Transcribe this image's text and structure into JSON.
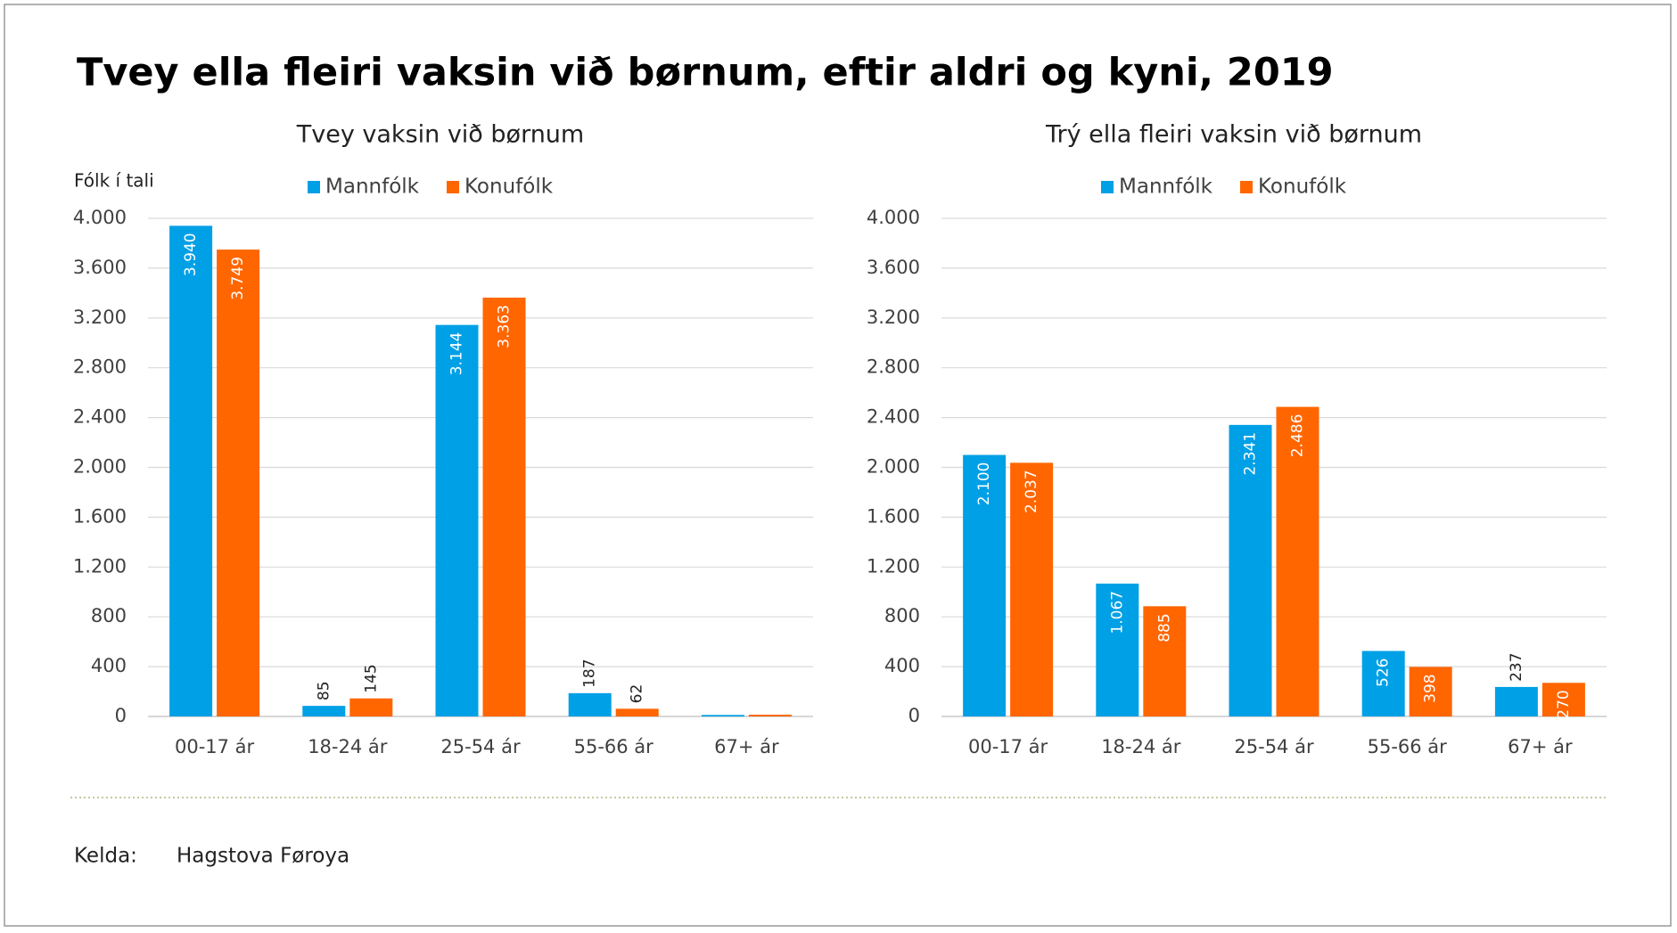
{
  "title": "Tvey ella fleiri vaksin við børnum, eftir aldri og kyni, 2019",
  "source": {
    "label": "Kelda:",
    "value": "Hagstova Føroya"
  },
  "chart_data": [
    {
      "type": "bar",
      "title": "Tvey vaksin við børnum",
      "ylabel": "Fólk í tali",
      "categories": [
        "00-17 ár",
        "18-24 ár",
        "25-54 ár",
        "55-66 ár",
        "67+ ár"
      ],
      "series": [
        {
          "name": "Mannfólk",
          "color": "#00a0e6",
          "values": [
            3940,
            85,
            3144,
            187,
            12
          ],
          "value_labels": [
            "3.940",
            "85",
            "3.144",
            "187",
            null
          ]
        },
        {
          "name": "Konufólk",
          "color": "#ff6600",
          "values": [
            3749,
            145,
            3363,
            62,
            14
          ],
          "value_labels": [
            "3.749",
            "145",
            "3.363",
            "62",
            null
          ]
        }
      ],
      "ylim": [
        0,
        4000
      ],
      "yticks": [
        0,
        400,
        800,
        {
          "value": 1200,
          "label": "1.200"
        },
        {
          "value": 1600,
          "label": "1.600"
        },
        {
          "value": 2000,
          "label": "2.000"
        },
        {
          "value": 2400,
          "label": "2.400"
        },
        {
          "value": 2800,
          "label": "2.800"
        },
        {
          "value": 3200,
          "label": "3.200"
        },
        {
          "value": 3600,
          "label": "3.600"
        },
        {
          "value": 4000,
          "label": "4.000"
        }
      ],
      "grid": true,
      "legend": "top"
    },
    {
      "type": "bar",
      "title": "Trý ella fleiri vaksin við børnum",
      "categories": [
        "00-17 ár",
        "18-24 ár",
        "25-54 ár",
        "55-66 ár",
        "67+ ár"
      ],
      "series": [
        {
          "name": "Mannfólk",
          "color": "#00a0e6",
          "values": [
            2100,
            1067,
            2341,
            526,
            237
          ],
          "value_labels": [
            "2.100",
            "1.067",
            "2.341",
            "526",
            "237"
          ]
        },
        {
          "name": "Konufólk",
          "color": "#ff6600",
          "values": [
            2037,
            885,
            2486,
            398,
            270
          ],
          "value_labels": [
            "2.037",
            "885",
            "2.486",
            "398",
            "270"
          ]
        }
      ],
      "ylim": [
        0,
        4000
      ],
      "yticks": [
        0,
        400,
        800,
        {
          "value": 1200,
          "label": "1.200"
        },
        {
          "value": 1600,
          "label": "1.600"
        },
        {
          "value": 2000,
          "label": "2.000"
        },
        {
          "value": 2400,
          "label": "2.400"
        },
        {
          "value": 2800,
          "label": "2.800"
        },
        {
          "value": 3200,
          "label": "3.200"
        },
        {
          "value": 3600,
          "label": "3.600"
        },
        {
          "value": 4000,
          "label": "4.000"
        }
      ],
      "grid": true,
      "legend": "top"
    }
  ]
}
